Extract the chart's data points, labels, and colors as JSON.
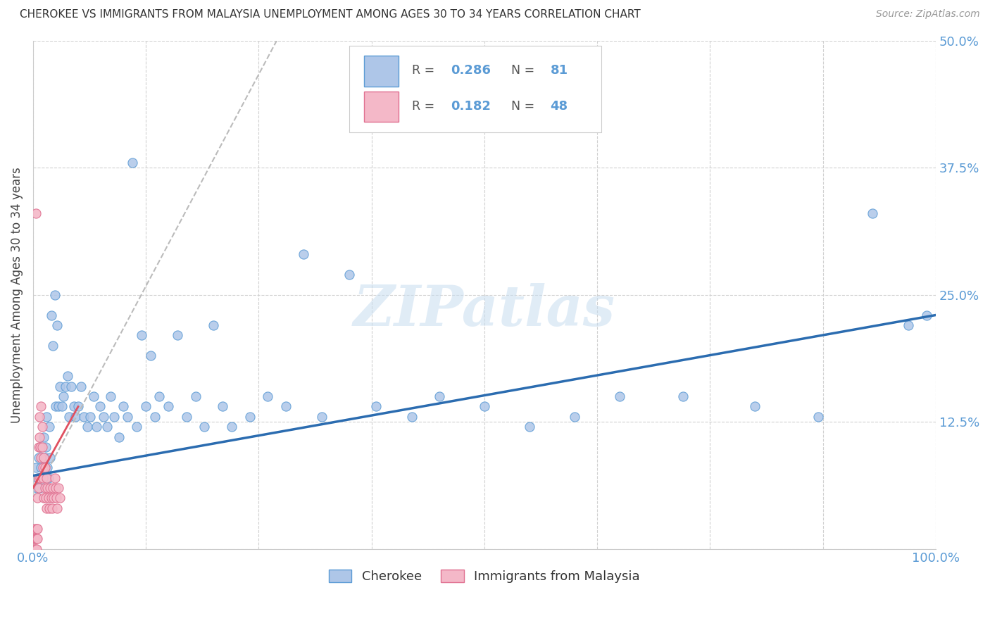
{
  "title": "CHEROKEE VS IMMIGRANTS FROM MALAYSIA UNEMPLOYMENT AMONG AGES 30 TO 34 YEARS CORRELATION CHART",
  "source": "Source: ZipAtlas.com",
  "ylabel": "Unemployment Among Ages 30 to 34 years",
  "xlim": [
    0,
    1.0
  ],
  "ylim": [
    0,
    0.5
  ],
  "xticks": [
    0.0,
    0.125,
    0.25,
    0.375,
    0.5,
    0.625,
    0.75,
    0.875,
    1.0
  ],
  "xticklabels": [
    "0.0%",
    "",
    "",
    "",
    "",
    "",
    "",
    "",
    "100.0%"
  ],
  "yticks": [
    0.0,
    0.125,
    0.25,
    0.375,
    0.5
  ],
  "yticklabels": [
    "",
    "12.5%",
    "25.0%",
    "37.5%",
    "50.0%"
  ],
  "cherokee_color": "#aec6e8",
  "malaysia_color": "#f4b8c8",
  "cherokee_edge": "#5b9bd5",
  "malaysia_edge": "#e07090",
  "trendline_cherokee_color": "#2b6cb0",
  "trendline_malaysia_color": "#e05060",
  "trendline_diagonal_color": "#cccccc",
  "R_cherokee": 0.286,
  "N_cherokee": 81,
  "R_malaysia": 0.182,
  "N_malaysia": 48,
  "legend_labels": [
    "Cherokee",
    "Immigrants from Malaysia"
  ],
  "watermark": "ZIPatlas",
  "cherokee_x": [
    0.003,
    0.004,
    0.005,
    0.006,
    0.007,
    0.008,
    0.009,
    0.01,
    0.011,
    0.012,
    0.013,
    0.014,
    0.015,
    0.016,
    0.017,
    0.018,
    0.019,
    0.02,
    0.022,
    0.024,
    0.025,
    0.027,
    0.028,
    0.03,
    0.032,
    0.034,
    0.036,
    0.038,
    0.04,
    0.042,
    0.045,
    0.047,
    0.05,
    0.053,
    0.056,
    0.06,
    0.063,
    0.067,
    0.07,
    0.074,
    0.078,
    0.082,
    0.086,
    0.09,
    0.095,
    0.1,
    0.105,
    0.11,
    0.115,
    0.12,
    0.125,
    0.13,
    0.135,
    0.14,
    0.15,
    0.16,
    0.17,
    0.18,
    0.19,
    0.2,
    0.21,
    0.22,
    0.24,
    0.26,
    0.28,
    0.3,
    0.32,
    0.35,
    0.38,
    0.42,
    0.45,
    0.5,
    0.55,
    0.6,
    0.65,
    0.72,
    0.8,
    0.87,
    0.93,
    0.97,
    0.99
  ],
  "cherokee_y": [
    0.08,
    0.06,
    0.07,
    0.09,
    0.06,
    0.1,
    0.08,
    0.09,
    0.07,
    0.11,
    0.09,
    0.1,
    0.13,
    0.08,
    0.07,
    0.12,
    0.09,
    0.23,
    0.2,
    0.25,
    0.14,
    0.22,
    0.14,
    0.16,
    0.14,
    0.15,
    0.16,
    0.17,
    0.13,
    0.16,
    0.14,
    0.13,
    0.14,
    0.16,
    0.13,
    0.12,
    0.13,
    0.15,
    0.12,
    0.14,
    0.13,
    0.12,
    0.15,
    0.13,
    0.11,
    0.14,
    0.13,
    0.38,
    0.12,
    0.21,
    0.14,
    0.19,
    0.13,
    0.15,
    0.14,
    0.21,
    0.13,
    0.15,
    0.12,
    0.22,
    0.14,
    0.12,
    0.13,
    0.15,
    0.14,
    0.29,
    0.13,
    0.27,
    0.14,
    0.13,
    0.15,
    0.14,
    0.12,
    0.13,
    0.15,
    0.15,
    0.14,
    0.13,
    0.33,
    0.22,
    0.23
  ],
  "malaysia_x": [
    0.001,
    0.001,
    0.002,
    0.002,
    0.002,
    0.003,
    0.003,
    0.003,
    0.004,
    0.004,
    0.004,
    0.005,
    0.005,
    0.005,
    0.006,
    0.006,
    0.006,
    0.007,
    0.007,
    0.008,
    0.008,
    0.009,
    0.009,
    0.01,
    0.01,
    0.011,
    0.011,
    0.012,
    0.012,
    0.013,
    0.013,
    0.014,
    0.015,
    0.015,
    0.016,
    0.017,
    0.018,
    0.019,
    0.02,
    0.021,
    0.022,
    0.023,
    0.024,
    0.025,
    0.026,
    0.027,
    0.028,
    0.03
  ],
  "malaysia_y": [
    0.0,
    0.01,
    0.0,
    0.01,
    0.02,
    0.0,
    0.01,
    0.33,
    0.0,
    0.01,
    0.02,
    0.01,
    0.02,
    0.05,
    0.06,
    0.1,
    0.07,
    0.11,
    0.13,
    0.07,
    0.1,
    0.09,
    0.14,
    0.1,
    0.12,
    0.07,
    0.08,
    0.05,
    0.09,
    0.06,
    0.08,
    0.05,
    0.04,
    0.07,
    0.06,
    0.05,
    0.04,
    0.06,
    0.05,
    0.04,
    0.06,
    0.05,
    0.07,
    0.06,
    0.05,
    0.04,
    0.06,
    0.05
  ],
  "cherokee_trendline_x0": 0.0,
  "cherokee_trendline_y0": 0.072,
  "cherokee_trendline_x1": 1.0,
  "cherokee_trendline_y1": 0.23,
  "malaysia_trendline_x0": 0.0,
  "malaysia_trendline_y0": 0.06,
  "malaysia_trendline_x1": 0.05,
  "malaysia_trendline_y1": 0.14
}
